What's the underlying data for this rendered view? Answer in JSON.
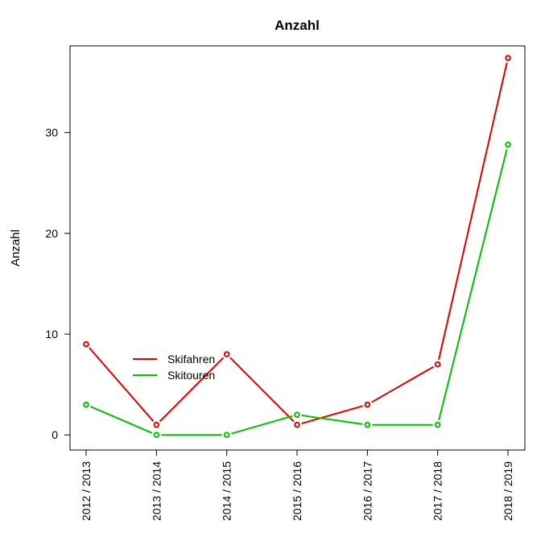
{
  "chart_data": {
    "type": "line",
    "title": "Anzahl",
    "xlabel": "",
    "ylabel": "Anzahl",
    "categories": [
      "2012 / 2013",
      "2013 / 2014",
      "2014 / 2015",
      "2015 / 2016",
      "2016 / 2017",
      "2017 / 2018",
      "2018 / 2019"
    ],
    "ylim": [
      -1.5,
      38.6
    ],
    "yticks": [
      0,
      10,
      20,
      30
    ],
    "grid": false,
    "legend_position": "bottom-left",
    "series": [
      {
        "name": "Skifahren",
        "color": "#dd0000",
        "values": [
          9,
          1,
          8,
          1,
          3,
          7,
          37.4
        ]
      },
      {
        "name": "Skitouren",
        "color": "#00c000",
        "values": [
          3,
          0,
          0,
          2,
          1,
          1,
          28.8
        ]
      }
    ]
  }
}
